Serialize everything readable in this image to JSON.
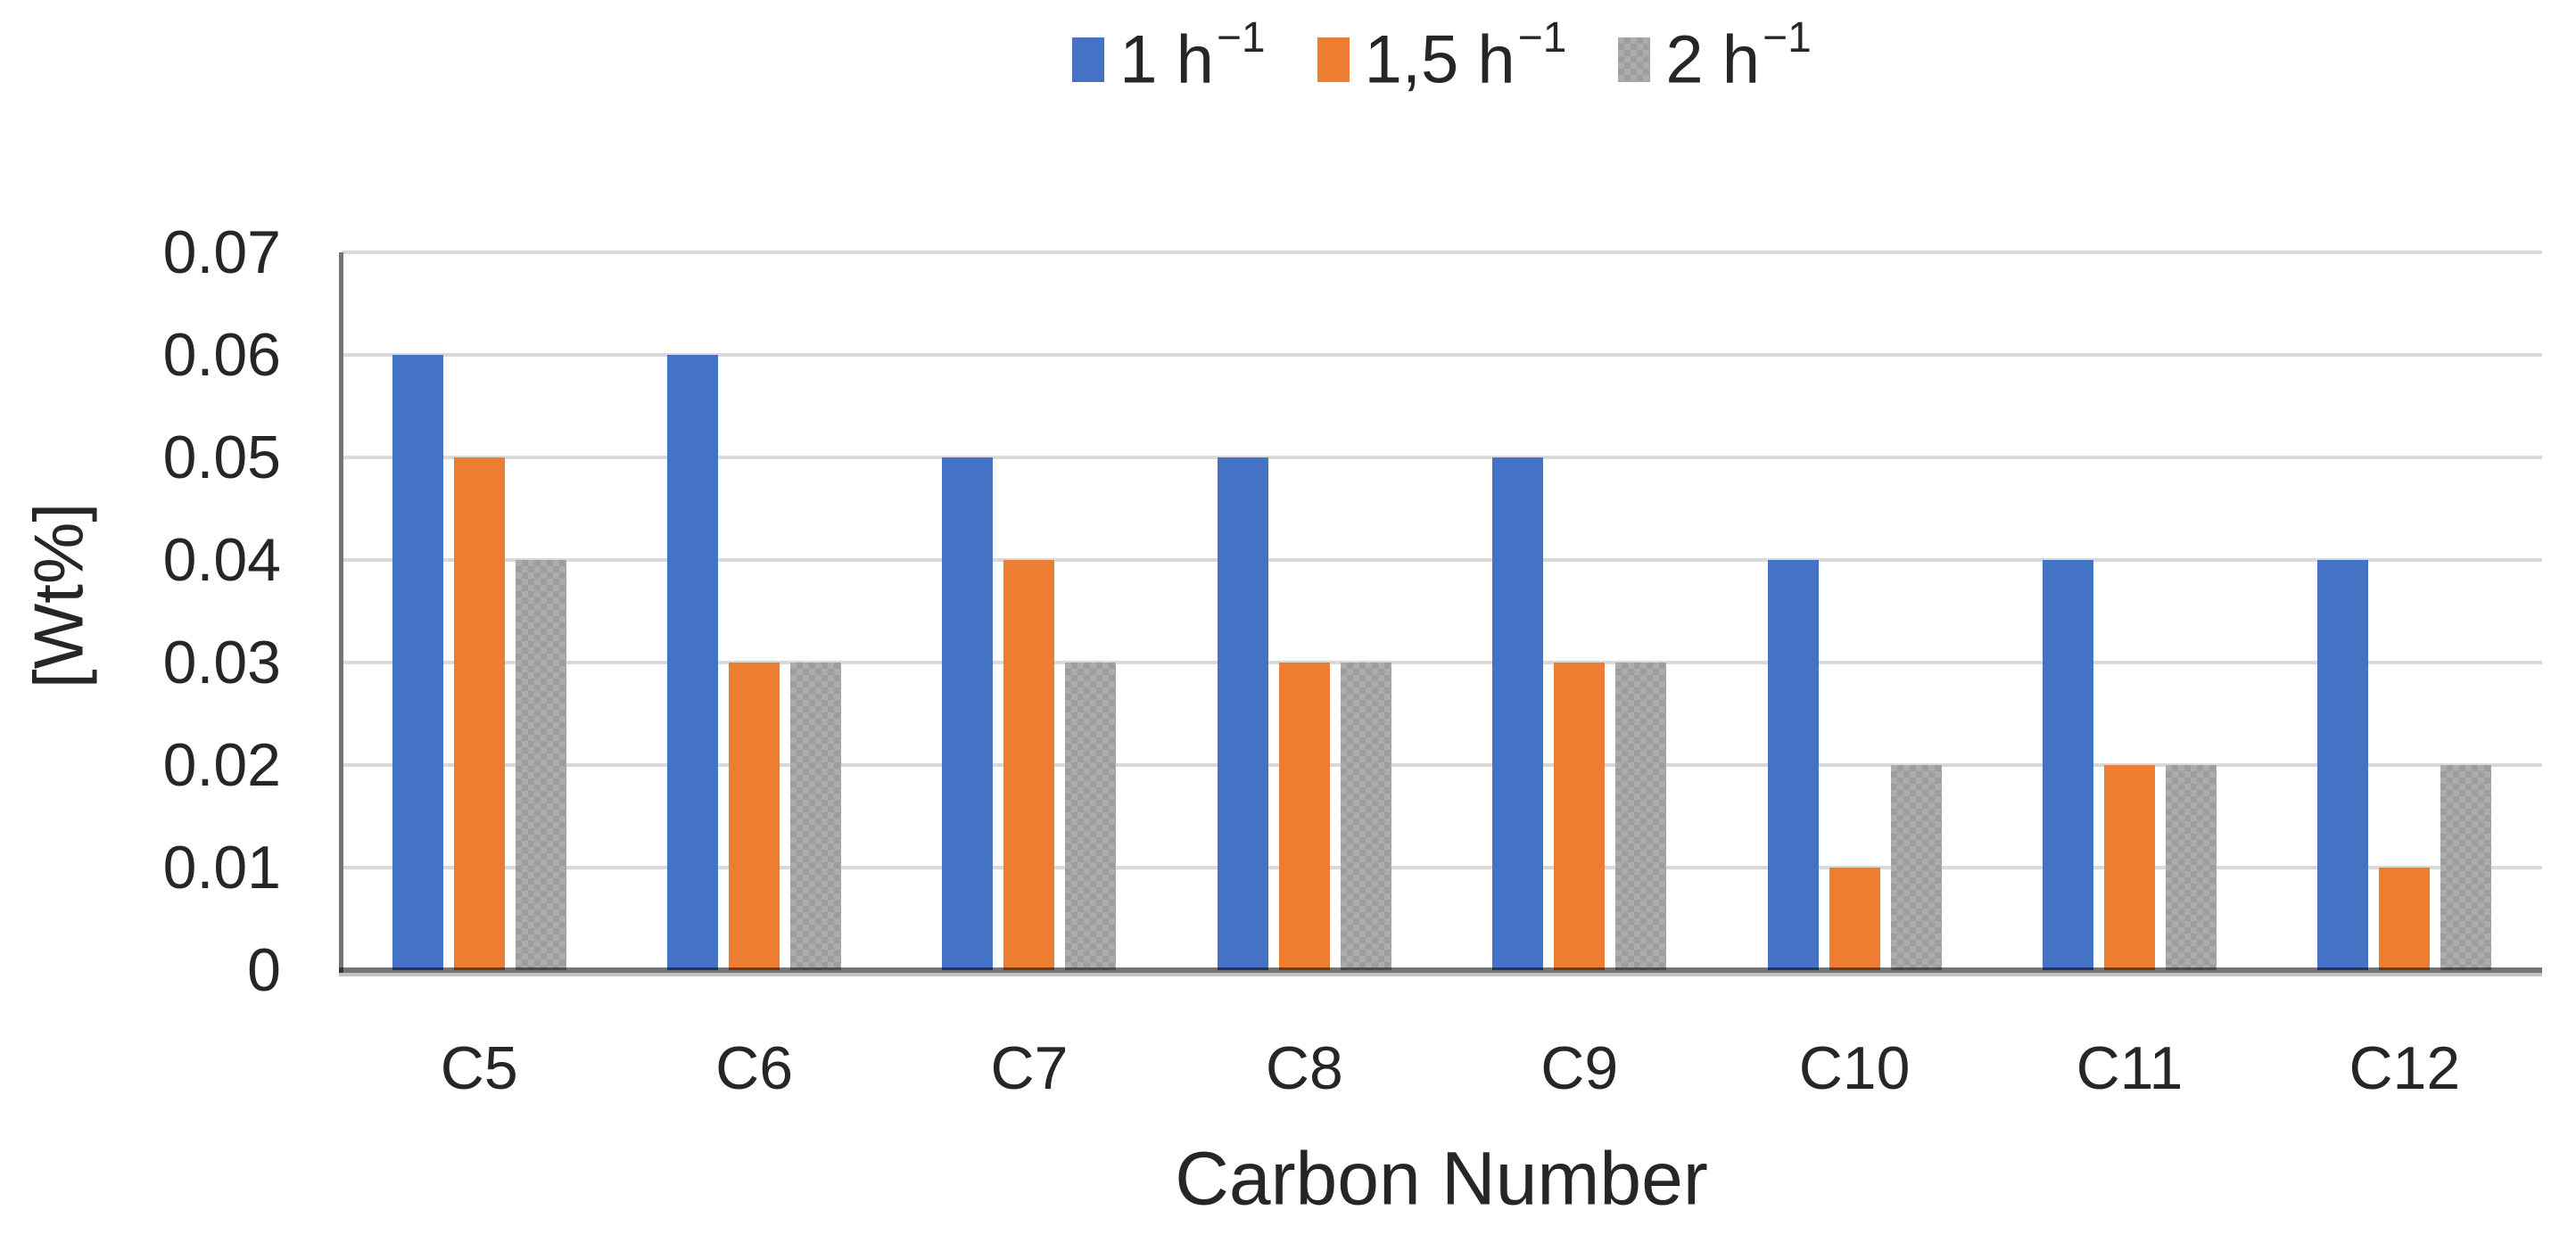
{
  "figure": {
    "background": "#ffffff",
    "gridline_color": "#d9d9d9",
    "axis_line_color": "#757575",
    "text_color": "#262626"
  },
  "legend": {
    "position": "top-center",
    "items": [
      {
        "label": "1 h",
        "exponent": "−1",
        "color": "#4472c4",
        "pattern": "solid"
      },
      {
        "label": "1,5 h",
        "exponent": "−1",
        "color": "#ed7d31",
        "pattern": "solid"
      },
      {
        "label": "2 h",
        "exponent": "−1",
        "color": "#a5a5a5",
        "pattern": "checker"
      }
    ]
  },
  "chart_data": {
    "type": "bar",
    "xlabel": "Carbon Number",
    "ylabel": "[Wt%]",
    "categories": [
      "C5",
      "C6",
      "C7",
      "C8",
      "C9",
      "C10",
      "C11",
      "C12"
    ],
    "series": [
      {
        "name": "1 h⁻¹",
        "color": "#4472c4",
        "values": [
          0.06,
          0.06,
          0.05,
          0.05,
          0.05,
          0.04,
          0.04,
          0.04
        ]
      },
      {
        "name": "1,5 h⁻¹",
        "color": "#ed7d31",
        "values": [
          0.05,
          0.03,
          0.04,
          0.03,
          0.03,
          0.01,
          0.02,
          0.01
        ]
      },
      {
        "name": "2 h⁻¹",
        "color": "#a5a5a5",
        "values": [
          0.04,
          0.03,
          0.03,
          0.03,
          0.03,
          0.02,
          0.02,
          0.02
        ]
      }
    ],
    "ylim": [
      0,
      0.07
    ],
    "ytick_step": 0.01,
    "ytick_labels": [
      "0",
      "0.01",
      "0.02",
      "0.03",
      "0.04",
      "0.05",
      "0.06",
      "0.07"
    ],
    "grid": true,
    "legend_position": "top"
  }
}
